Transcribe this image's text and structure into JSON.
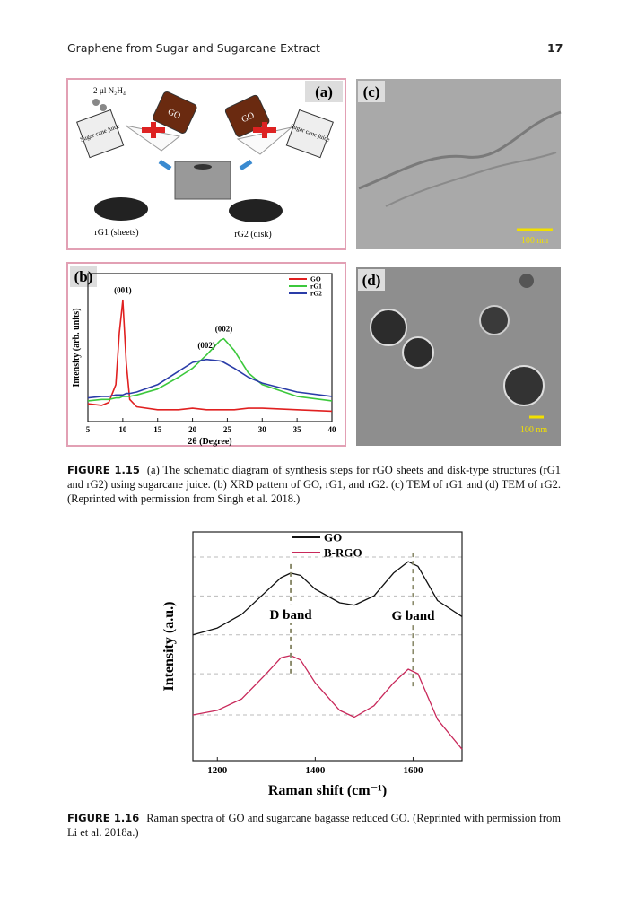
{
  "header": {
    "title": "Graphene from Sugar and Sugarcane Extract",
    "page": "17"
  },
  "figure_1_15": {
    "schematic": {
      "panel": "(a)",
      "reagent": "2 µl N₂H₄",
      "bottle_left": "GO",
      "bottle_right": "GO",
      "beaker_left": "Sugar cane juice",
      "beaker_right": "Sugar cane juice",
      "product_left": "rG1 (sheets)",
      "product_right": "rG2 (disk)"
    },
    "tem_c": {
      "panel": "(c)",
      "scale": "100 nm"
    },
    "tem_d": {
      "panel": "(d)",
      "scale": "100 nm"
    },
    "caption": {
      "label": "FIGURE 1.15",
      "text": "(a) The schematic diagram of synthesis steps for rGO sheets and disk-type structures (rG1 and rG2) using sugarcane juice. (b) XRD pattern of GO, rG1, and rG2. (c) TEM of rG1 and (d) TEM of rG2. (Reprinted with permission from Singh et al. 2018.)"
    }
  },
  "figure_1_16": {
    "caption": {
      "label": "FIGURE 1.16",
      "text": "Raman spectra of GO and sugarcane bagasse reduced GO. (Reprinted with permission from Li et al. 2018a.)"
    }
  },
  "chart_data": [
    {
      "type": "line",
      "panel": "(b)",
      "xlabel": "2θ (Degree)",
      "ylabel": "Intensity (arb. units)",
      "xlim": [
        5,
        40
      ],
      "xticks": [
        5,
        10,
        15,
        20,
        25,
        30,
        35,
        40
      ],
      "ylim": [
        0,
        100
      ],
      "legend": "upper right",
      "x": [
        5,
        7,
        8,
        9,
        9.5,
        10,
        10.5,
        11,
        12,
        15,
        18,
        20,
        22,
        24,
        24.5,
        26,
        28,
        30,
        35,
        40
      ],
      "series": [
        {
          "name": "GO",
          "color": "#e02020",
          "values": [
            12,
            11,
            13,
            25,
            60,
            82,
            40,
            15,
            10,
            8,
            8,
            9,
            8,
            8,
            8,
            8,
            9,
            9,
            8,
            7
          ]
        },
        {
          "name": "rG1",
          "color": "#3cc83c",
          "values": [
            14,
            15,
            15,
            16,
            16,
            17,
            17,
            17,
            18,
            22,
            30,
            36,
            45,
            55,
            56,
            48,
            33,
            25,
            17,
            14
          ]
        },
        {
          "name": "rG2",
          "color": "#2a3ca8",
          "values": [
            16,
            17,
            17,
            18,
            18,
            18,
            19,
            19,
            20,
            25,
            34,
            40,
            42,
            41,
            40,
            36,
            30,
            26,
            20,
            17
          ]
        }
      ],
      "annotations": [
        {
          "text": "(001)",
          "x": 10
        },
        {
          "text": "(002)",
          "x": 24.5
        },
        {
          "text": "(002)",
          "x": 22
        }
      ]
    },
    {
      "type": "line",
      "xlabel": "Raman shift (cm⁻¹)",
      "ylabel": "Intensity (a.u.)",
      "xlim": [
        1150,
        1700
      ],
      "xticks": [
        1200,
        1400,
        1600
      ],
      "ylim": [
        0,
        100
      ],
      "ygrid": [
        20,
        38,
        55,
        72,
        89
      ],
      "legend": "upper center",
      "x": [
        1150,
        1200,
        1250,
        1300,
        1330,
        1350,
        1370,
        1400,
        1450,
        1480,
        1520,
        1560,
        1590,
        1610,
        1650,
        1700
      ],
      "series": [
        {
          "name": "GO",
          "color": "#111111",
          "values": [
            55,
            58,
            64,
            74,
            80,
            82,
            81,
            75,
            69,
            68,
            72,
            82,
            87,
            85,
            70,
            63
          ]
        },
        {
          "name": "B-RGO",
          "color": "#c8285a",
          "values": [
            20,
            22,
            27,
            38,
            45,
            46,
            44,
            34,
            22,
            19,
            24,
            34,
            40,
            38,
            18,
            5
          ]
        }
      ],
      "annotations": [
        {
          "text": "D band",
          "x": 1350
        },
        {
          "text": "G band",
          "x": 1600
        }
      ]
    }
  ]
}
